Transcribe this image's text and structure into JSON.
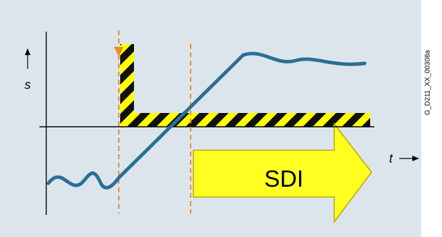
{
  "diagram": {
    "y_axis_label": "s",
    "x_axis_label": "t",
    "arrow_label": "SDI",
    "figure_id": "G_D211_XX_00308a"
  },
  "colors": {
    "background": "#dde5ec",
    "axis": "#000000",
    "signal_curve": "#2a6f96",
    "marker_line": "#f08a24",
    "hazard_yellow": "#ffff00",
    "hazard_black": "#111111",
    "arrow_fill": "#ffff22",
    "arrow_stroke": "#b9a800"
  }
}
